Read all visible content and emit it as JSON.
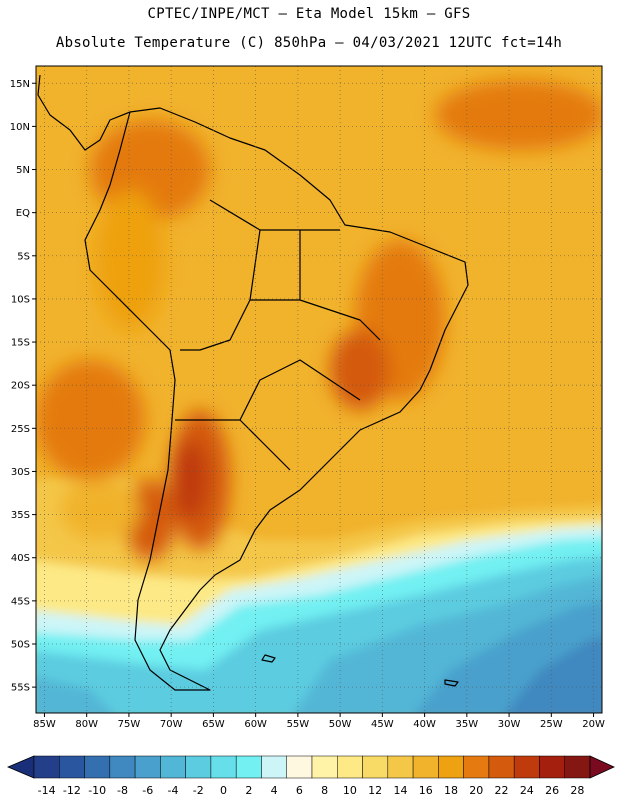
{
  "header": {
    "title_line1": "CPTEC/INPE/MCT –  Eta Model 15km – GFS",
    "title_line2": "Absolute Temperature (C) 850hPa – 04/03/2021 12UTC fct=14h"
  },
  "map": {
    "lon_range": [
      -86,
      -19
    ],
    "lat_range": [
      -58,
      17
    ],
    "lon_ticks": [
      {
        "value": -85,
        "label": "85W"
      },
      {
        "value": -80,
        "label": "80W"
      },
      {
        "value": -75,
        "label": "75W"
      },
      {
        "value": -70,
        "label": "70W"
      },
      {
        "value": -65,
        "label": "65W"
      },
      {
        "value": -60,
        "label": "60W"
      },
      {
        "value": -55,
        "label": "55W"
      },
      {
        "value": -50,
        "label": "50W"
      },
      {
        "value": -45,
        "label": "45W"
      },
      {
        "value": -40,
        "label": "40W"
      },
      {
        "value": -35,
        "label": "35W"
      },
      {
        "value": -30,
        "label": "30W"
      },
      {
        "value": -25,
        "label": "25W"
      },
      {
        "value": -20,
        "label": "20W"
      }
    ],
    "lat_ticks": [
      {
        "value": 15,
        "label": "15N"
      },
      {
        "value": 10,
        "label": "10N"
      },
      {
        "value": 5,
        "label": "5N"
      },
      {
        "value": 0,
        "label": "EQ"
      },
      {
        "value": -5,
        "label": "5S"
      },
      {
        "value": -10,
        "label": "10S"
      },
      {
        "value": -15,
        "label": "15S"
      },
      {
        "value": -20,
        "label": "20S"
      },
      {
        "value": -25,
        "label": "25S"
      },
      {
        "value": -30,
        "label": "30S"
      },
      {
        "value": -35,
        "label": "35S"
      },
      {
        "value": -40,
        "label": "40S"
      },
      {
        "value": -45,
        "label": "45S"
      },
      {
        "value": -50,
        "label": "50S"
      },
      {
        "value": -55,
        "label": "55S"
      }
    ]
  },
  "colorbar": {
    "labels": [
      "-14",
      "-12",
      "-10",
      "-8",
      "-6",
      "-4",
      "-2",
      "0",
      "2",
      "4",
      "6",
      "8",
      "10",
      "12",
      "14",
      "16",
      "18",
      "20",
      "22",
      "24",
      "26",
      "28"
    ],
    "under_color": "#1a2f7a",
    "over_color": "#7a0a20",
    "colors": [
      "#233f8a",
      "#2a56a0",
      "#3470b0",
      "#3f88c0",
      "#4aa0cc",
      "#52b6d6",
      "#5ccce0",
      "#66dfea",
      "#72f0f2",
      "#cdf5f8",
      "#fff8e0",
      "#fff3a8",
      "#fde985",
      "#f8db66",
      "#f4c748",
      "#f1b22c",
      "#eea111",
      "#e47a10",
      "#d45a0d",
      "#bf3a0c",
      "#a41f0e",
      "#841712"
    ]
  }
}
